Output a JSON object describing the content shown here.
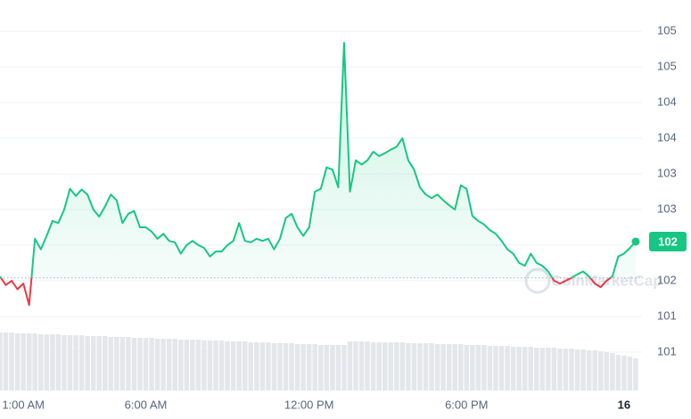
{
  "chart_data": {
    "type": "line",
    "series": [
      {
        "name": "Price",
        "color": "#16c784",
        "color_below": "#ea3943",
        "values": [
          101.96,
          101.84,
          101.9,
          101.78,
          101.86,
          101.56,
          102.49,
          102.34,
          102.53,
          102.74,
          102.71,
          102.9,
          103.19,
          103.09,
          103.18,
          103.11,
          102.9,
          102.8,
          102.94,
          103.11,
          103.03,
          102.71,
          102.84,
          102.88,
          102.65,
          102.65,
          102.59,
          102.49,
          102.56,
          102.46,
          102.44,
          102.28,
          102.4,
          102.46,
          102.4,
          102.36,
          102.24,
          102.31,
          102.31,
          102.4,
          102.46,
          102.71,
          102.46,
          102.44,
          102.49,
          102.46,
          102.49,
          102.34,
          102.49,
          102.78,
          102.84,
          102.65,
          102.53,
          102.65,
          103.15,
          103.19,
          103.49,
          103.46,
          103.21,
          105.24,
          103.15,
          103.59,
          103.53,
          103.59,
          103.71,
          103.65,
          103.69,
          103.74,
          103.78,
          103.9,
          103.59,
          103.46,
          103.21,
          103.11,
          103.06,
          103.11,
          103.03,
          102.96,
          102.9,
          103.24,
          103.19,
          102.81,
          102.74,
          102.69,
          102.61,
          102.56,
          102.46,
          102.34,
          102.28,
          102.15,
          102.11,
          102.28,
          102.15,
          102.11,
          102.03,
          101.9,
          101.86,
          101.9,
          101.94,
          101.99,
          102.03,
          101.96,
          101.86,
          101.81,
          101.9,
          101.96,
          102.24,
          102.28,
          102.36,
          102.45
        ],
        "last_label": "102"
      }
    ],
    "volume": {
      "color": "#e3e6ea",
      "values": [
        65,
        65,
        65,
        64,
        64,
        64,
        64,
        63,
        63,
        63,
        63,
        62,
        62,
        62,
        62,
        61,
        61,
        61,
        61,
        60,
        60,
        60,
        60,
        59,
        59,
        59,
        59,
        58,
        58,
        58,
        58,
        57,
        57,
        57,
        57,
        56,
        56,
        56,
        56,
        55,
        55,
        55,
        55,
        54,
        54,
        54,
        54,
        53,
        53,
        53,
        53,
        52,
        52,
        52,
        52,
        51,
        51,
        51,
        51,
        51,
        55,
        55,
        55,
        55,
        54,
        54,
        54,
        54,
        54,
        54,
        53,
        53,
        53,
        53,
        53,
        52,
        52,
        52,
        52,
        52,
        51,
        51,
        51,
        51,
        50,
        50,
        50,
        50,
        49,
        49,
        49,
        49,
        48,
        48,
        48,
        48,
        47,
        47,
        47,
        46,
        46,
        45,
        45,
        44,
        43,
        42,
        40,
        39,
        38,
        36
      ]
    },
    "baseline": 101.94,
    "xlim": [
      0,
      109
    ],
    "xticks": [
      {
        "value": 4,
        "label": "1:00 AM"
      },
      {
        "value": 25,
        "label": "6:00 AM"
      },
      {
        "value": 53,
        "label": "12:00 PM"
      },
      {
        "value": 80,
        "label": "6:00 PM"
      },
      {
        "value": 107,
        "label": "16"
      }
    ],
    "ylim": [
      100.36,
      105.84
    ],
    "yticks": [
      {
        "value": 105.4,
        "label": "105"
      },
      {
        "value": 104.9,
        "label": "105"
      },
      {
        "value": 104.4,
        "label": "104"
      },
      {
        "value": 103.9,
        "label": "104"
      },
      {
        "value": 103.4,
        "label": "103"
      },
      {
        "value": 102.9,
        "label": "103"
      },
      {
        "value": 102.4,
        "label": "102"
      },
      {
        "value": 101.9,
        "label": "102"
      },
      {
        "value": 101.4,
        "label": "101"
      },
      {
        "value": 100.9,
        "label": "101"
      }
    ],
    "grid": true,
    "watermark": "CoinMarketCap"
  }
}
